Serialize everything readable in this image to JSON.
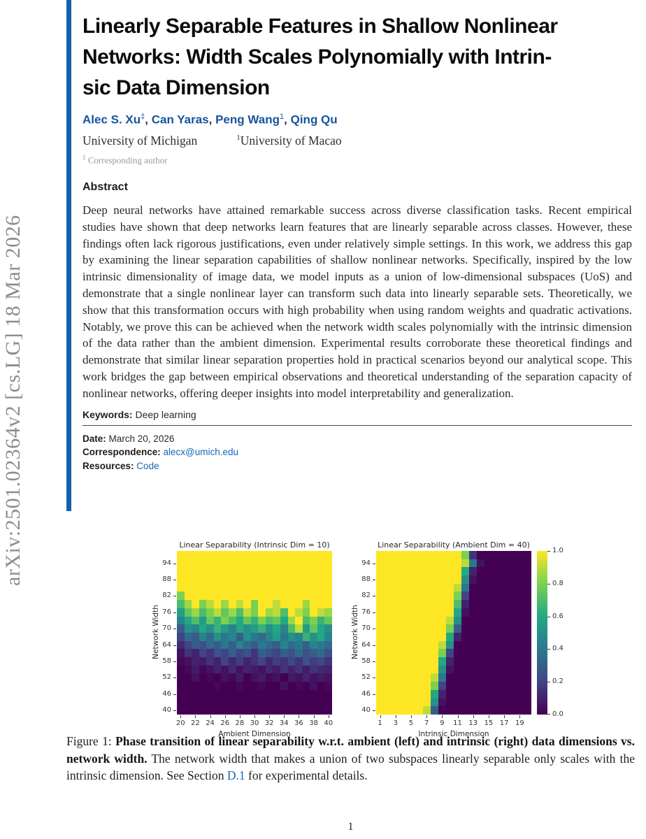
{
  "sidebar": {
    "arxiv_label": "arXiv:2501.02364v2  [cs.LG]  18 Mar 2026"
  },
  "header": {
    "title_lines": [
      "Linearly Separable Features in Shallow Nonlinear",
      "Networks: Width Scales Polynomially with Intrin-",
      "sic Data Dimension"
    ],
    "authors": [
      {
        "name": "Alec S. Xu",
        "sup": "‡"
      },
      {
        "name": "Can Yaras",
        "sup": ""
      },
      {
        "name": "Peng Wang",
        "sup": "1"
      },
      {
        "name": "Qing Qu",
        "sup": ""
      }
    ],
    "affiliations": [
      {
        "sup": "",
        "name": "University of Michigan"
      },
      {
        "sup": "1",
        "name": "University of Macao"
      }
    ],
    "corresponding_sup": "‡",
    "corresponding_note": "Corresponding author"
  },
  "abstract": {
    "heading": "Abstract",
    "text": "Deep neural networks have attained remarkable success across diverse classification tasks. Recent empirical studies have shown that deep networks learn features that are linearly separable across classes. However, these findings often lack rigorous justifications, even under relatively simple settings. In this work, we address this gap by examining the linear separation capabilities of shallow nonlinear networks. Specifically, inspired by the low intrinsic dimensionality of image data, we model inputs as a union of low-dimensional subspaces (UoS) and demonstrate that a single nonlinear layer can transform such data into linearly separable sets. Theoretically, we show that this transformation occurs with high probability when using random weights and quadratic activations. Notably, we prove this can be achieved when the network width scales polynomially with the intrinsic dimension of the data rather than the ambient dimension. Experimental results corroborate these theoretical findings and demonstrate that similar linear separation properties hold in practical scenarios beyond our analytical scope. This work bridges the gap between empirical observations and theoretical understanding of the separation capacity of nonlinear networks, offering deeper insights into model interpretability and generalization."
  },
  "meta": {
    "keywords_label": "Keywords:",
    "keywords_value": "Deep learning",
    "date_label": "Date:",
    "date_value": "March 20, 2026",
    "correspondence_label": "Correspondence:",
    "correspondence_value": "alecx@umich.edu",
    "resources_label": "Resources:",
    "resources_value": "Code"
  },
  "caption": {
    "prefix": "Figure 1: ",
    "bold": "Phase transition of linear separability w.r.t. ambient (left) and intrinsic (right) data dimensions vs. network width.",
    "middle": " The network width that makes a union of two subspaces linearly separable only scales with the intrinsic dimension. See Section ",
    "link": "D.1",
    "suffix": " for experimental details."
  },
  "footer": {
    "page_number": "1"
  },
  "colors": {
    "accent_bar": "#1263ad",
    "author_blue": "#15549c",
    "link_blue": "#1766b5",
    "viridis_anchors": [
      "#440154",
      "#414487",
      "#2a788e",
      "#22a884",
      "#7ad151",
      "#fde725"
    ]
  },
  "chart_data": [
    {
      "type": "heatmap",
      "title": "Linear Separability (Intrinsic Dim = 10)",
      "xlabel": "Ambient Dimension",
      "ylabel": "Network Width",
      "x_ticks": [
        20,
        22,
        24,
        26,
        28,
        30,
        32,
        34,
        36,
        38,
        40
      ],
      "y_ticks": [
        94,
        88,
        82,
        76,
        70,
        64,
        58,
        52,
        46,
        40
      ],
      "col_values": [
        20,
        21,
        22,
        23,
        24,
        25,
        26,
        27,
        28,
        29,
        30,
        31,
        32,
        33,
        34,
        35,
        36,
        37,
        38,
        39,
        40
      ],
      "row_values": [
        97,
        94,
        91,
        88,
        85,
        82,
        79,
        76,
        73,
        70,
        67,
        64,
        61,
        58,
        55,
        52,
        49,
        46,
        43,
        40
      ],
      "vmin": 0.0,
      "vmax": 1.0,
      "colormap": "viridis",
      "values": [
        [
          1,
          1,
          1,
          1,
          1,
          1,
          1,
          1,
          1,
          1,
          1,
          1,
          1,
          1,
          1,
          1,
          1,
          1,
          1,
          1,
          1
        ],
        [
          1,
          1,
          1,
          1,
          1,
          1,
          1,
          1,
          1,
          1,
          1,
          1,
          1,
          1,
          1,
          1,
          1,
          1,
          1,
          1,
          1
        ],
        [
          1,
          1,
          1,
          1,
          1,
          1,
          1,
          1,
          1,
          1,
          1,
          1,
          1,
          1,
          1,
          1,
          1,
          1,
          1,
          1,
          1
        ],
        [
          1,
          1,
          1,
          1,
          1,
          1,
          1,
          1,
          1,
          1,
          1,
          1,
          1,
          1,
          1,
          1,
          1,
          1,
          1,
          1,
          1
        ],
        [
          1,
          1,
          1,
          1,
          1,
          1,
          1,
          1,
          1,
          1,
          1,
          1,
          1,
          1,
          1,
          1,
          1,
          1,
          1,
          1,
          1
        ],
        [
          0.8,
          1,
          1,
          1,
          1,
          1,
          1,
          1,
          1,
          1,
          1,
          1,
          1,
          1,
          1,
          1,
          1,
          1,
          1,
          1,
          1
        ],
        [
          0.7,
          0.85,
          1,
          0.8,
          0.9,
          1,
          0.85,
          1,
          0.9,
          1,
          0.8,
          1,
          1,
          0.9,
          1,
          1,
          1,
          0.85,
          1,
          1,
          1
        ],
        [
          0.55,
          0.75,
          0.85,
          0.7,
          0.8,
          0.9,
          0.75,
          0.85,
          0.7,
          0.9,
          0.8,
          1,
          0.85,
          0.9,
          0.7,
          1,
          0.9,
          0.8,
          1,
          0.9,
          0.85
        ],
        [
          0.45,
          0.6,
          0.7,
          0.55,
          0.75,
          0.65,
          0.8,
          0.7,
          0.6,
          0.75,
          0.65,
          0.8,
          0.7,
          0.75,
          0.6,
          0.85,
          1,
          0.7,
          0.8,
          0.65,
          0.75
        ],
        [
          0.3,
          0.5,
          0.45,
          0.6,
          0.5,
          0.65,
          0.55,
          0.45,
          0.6,
          0.5,
          0.55,
          0.65,
          0.5,
          0.6,
          0.45,
          0.7,
          0.9,
          0.55,
          0.75,
          0.6,
          0.5
        ],
        [
          0.2,
          0.35,
          0.3,
          0.45,
          0.35,
          0.5,
          0.4,
          0.45,
          0.3,
          0.5,
          0.4,
          0.35,
          0.45,
          0.55,
          0.4,
          0.5,
          0.45,
          0.65,
          0.5,
          0.6,
          0.45
        ],
        [
          0.12,
          0.2,
          0.3,
          0.25,
          0.35,
          0.3,
          0.4,
          0.3,
          0.45,
          0.35,
          0.3,
          0.4,
          0.35,
          0.3,
          0.45,
          0.35,
          0.4,
          0.3,
          0.45,
          0.4,
          0.35
        ],
        [
          0.05,
          0.15,
          0.1,
          0.2,
          0.15,
          0.25,
          0.2,
          0.3,
          0.2,
          0.25,
          0.15,
          0.3,
          0.25,
          0.2,
          0.3,
          0.25,
          0.35,
          0.25,
          0.3,
          0.35,
          0.25
        ],
        [
          0.02,
          0.05,
          0.1,
          0.08,
          0.15,
          0.1,
          0.2,
          0.12,
          0.18,
          0.1,
          0.15,
          0.2,
          0.12,
          0.18,
          0.15,
          0.22,
          0.15,
          0.25,
          0.18,
          0.22,
          0.15
        ],
        [
          0,
          0.02,
          0.08,
          0.02,
          0.05,
          0.1,
          0.05,
          0.12,
          0.05,
          0.1,
          0.08,
          0.05,
          0.12,
          0.08,
          0.15,
          0.1,
          0.15,
          0.08,
          0.15,
          0.12,
          0.1
        ],
        [
          0,
          0,
          0.05,
          0,
          0.02,
          0,
          0.05,
          0.02,
          0.08,
          0,
          0.05,
          0.08,
          0.02,
          0.05,
          0,
          0.08,
          0.05,
          0.1,
          0.05,
          0.08,
          0.05
        ],
        [
          0,
          0,
          0,
          0,
          0,
          0.02,
          0,
          0,
          0.02,
          0,
          0,
          0.02,
          0,
          0,
          0.05,
          0,
          0.02,
          0,
          0.05,
          0,
          0.02
        ],
        [
          0,
          0,
          0,
          0,
          0,
          0,
          0,
          0,
          0,
          0,
          0,
          0,
          0,
          0,
          0,
          0,
          0,
          0,
          0,
          0,
          0
        ],
        [
          0,
          0,
          0,
          0,
          0,
          0,
          0,
          0,
          0,
          0,
          0,
          0,
          0,
          0,
          0,
          0,
          0,
          0,
          0,
          0,
          0
        ],
        [
          0,
          0,
          0,
          0,
          0,
          0,
          0,
          0,
          0,
          0,
          0,
          0,
          0,
          0,
          0,
          0,
          0,
          0,
          0,
          0,
          0
        ]
      ]
    },
    {
      "type": "heatmap",
      "title": "Linear Separability (Ambient Dim = 40)",
      "xlabel": "Intrinsic Dimension",
      "ylabel": "Network Width",
      "x_ticks": [
        1,
        3,
        5,
        7,
        9,
        11,
        13,
        15,
        17,
        19
      ],
      "y_ticks": [
        94,
        88,
        82,
        76,
        70,
        64,
        58,
        52,
        46,
        40
      ],
      "col_values": [
        1,
        2,
        3,
        4,
        5,
        6,
        7,
        8,
        9,
        10,
        11,
        12,
        13,
        14,
        15,
        16,
        17,
        18,
        19,
        20
      ],
      "row_values": [
        97,
        94,
        91,
        88,
        85,
        82,
        79,
        76,
        73,
        70,
        67,
        64,
        61,
        58,
        55,
        52,
        49,
        46,
        43,
        40
      ],
      "vmin": 0.0,
      "vmax": 1.0,
      "colormap": "viridis",
      "colorbar_ticks": [
        "1.0",
        "0.8",
        "0.6",
        "0.4",
        "0.2",
        "0.0"
      ],
      "values": [
        [
          1,
          1,
          1,
          1,
          1,
          1,
          1,
          1,
          1,
          1,
          1,
          0.8,
          0.15,
          0,
          0,
          0,
          0,
          0,
          0,
          0
        ],
        [
          1,
          1,
          1,
          1,
          1,
          1,
          1,
          1,
          1,
          1,
          1,
          0.9,
          0.4,
          0.05,
          0,
          0,
          0,
          0,
          0,
          0
        ],
        [
          1,
          1,
          1,
          1,
          1,
          1,
          1,
          1,
          1,
          1,
          1,
          0.6,
          0.1,
          0,
          0,
          0,
          0,
          0,
          0,
          0
        ],
        [
          1,
          1,
          1,
          1,
          1,
          1,
          1,
          1,
          1,
          1,
          1,
          0.5,
          0.05,
          0,
          0,
          0,
          0,
          0,
          0,
          0
        ],
        [
          1,
          1,
          1,
          1,
          1,
          1,
          1,
          1,
          1,
          1,
          0.9,
          0.4,
          0,
          0,
          0,
          0,
          0,
          0,
          0,
          0
        ],
        [
          1,
          1,
          1,
          1,
          1,
          1,
          1,
          1,
          1,
          1,
          0.8,
          0.2,
          0,
          0,
          0,
          0,
          0,
          0,
          0,
          0
        ],
        [
          1,
          1,
          1,
          1,
          1,
          1,
          1,
          1,
          1,
          1,
          0.7,
          0.1,
          0,
          0,
          0,
          0,
          0,
          0,
          0,
          0
        ],
        [
          1,
          1,
          1,
          1,
          1,
          1,
          1,
          1,
          1,
          1,
          0.6,
          0.05,
          0,
          0,
          0,
          0,
          0,
          0,
          0,
          0
        ],
        [
          1,
          1,
          1,
          1,
          1,
          1,
          1,
          1,
          1,
          0.9,
          0.5,
          0,
          0,
          0,
          0,
          0,
          0,
          0,
          0,
          0
        ],
        [
          1,
          1,
          1,
          1,
          1,
          1,
          1,
          1,
          1,
          0.8,
          0.3,
          0,
          0,
          0,
          0,
          0,
          0,
          0,
          0,
          0
        ],
        [
          1,
          1,
          1,
          1,
          1,
          1,
          1,
          1,
          1,
          0.6,
          0.1,
          0,
          0,
          0,
          0,
          0,
          0,
          0,
          0,
          0
        ],
        [
          1,
          1,
          1,
          1,
          1,
          1,
          1,
          1,
          0.9,
          0.5,
          0,
          0,
          0,
          0,
          0,
          0,
          0,
          0,
          0,
          0
        ],
        [
          1,
          1,
          1,
          1,
          1,
          1,
          1,
          1,
          0.8,
          0.2,
          0,
          0,
          0,
          0,
          0,
          0,
          0,
          0,
          0,
          0
        ],
        [
          1,
          1,
          1,
          1,
          1,
          1,
          1,
          1,
          0.6,
          0.1,
          0,
          0,
          0,
          0,
          0,
          0,
          0,
          0,
          0,
          0
        ],
        [
          1,
          1,
          1,
          1,
          1,
          1,
          1,
          1,
          0.5,
          0.05,
          0,
          0,
          0,
          0,
          0,
          0,
          0,
          0,
          0,
          0
        ],
        [
          1,
          1,
          1,
          1,
          1,
          1,
          1,
          0.9,
          0.4,
          0,
          0,
          0,
          0,
          0,
          0,
          0,
          0,
          0,
          0,
          0
        ],
        [
          1,
          1,
          1,
          1,
          1,
          1,
          1,
          0.8,
          0.2,
          0,
          0,
          0,
          0,
          0,
          0,
          0,
          0,
          0,
          0,
          0
        ],
        [
          1,
          1,
          1,
          1,
          1,
          1,
          1,
          0.6,
          0.1,
          0,
          0,
          0,
          0,
          0,
          0,
          0,
          0,
          0,
          0,
          0
        ],
        [
          1,
          1,
          1,
          1,
          1,
          1,
          1,
          0.5,
          0.05,
          0,
          0,
          0,
          0,
          0,
          0,
          0,
          0,
          0,
          0,
          0
        ],
        [
          1,
          1,
          1,
          1,
          1,
          1,
          0.9,
          0.3,
          0,
          0,
          0,
          0,
          0,
          0,
          0,
          0,
          0,
          0,
          0,
          0
        ]
      ]
    }
  ]
}
